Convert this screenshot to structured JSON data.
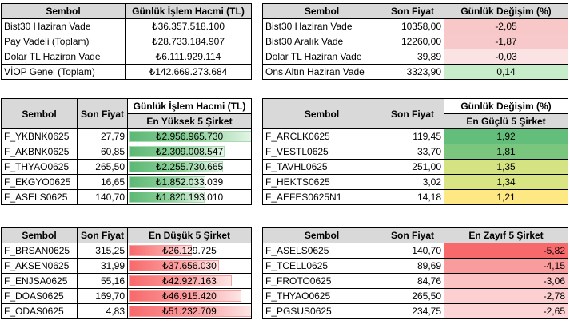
{
  "t1": {
    "headers": [
      "Sembol",
      "Günlük İşlem Hacmi (TL)"
    ],
    "rows": [
      {
        "sym": "Bist30 Haziran Vade",
        "val": "₺36.357.518.100"
      },
      {
        "sym": "Pay Vadeli (Toplam)",
        "val": "₺28.733.184.907"
      },
      {
        "sym": "Dolar TL Haziran Vade",
        "val": "₺6.111.929.114"
      },
      {
        "sym": "VİOP Genel (Toplam)",
        "val": "₺142.669.273.684"
      }
    ]
  },
  "t2": {
    "headers": [
      "Sembol",
      "Son Fiyat",
      "Günlük Değişim (%)"
    ],
    "rows": [
      {
        "sym": "Bist30 Haziran Vade",
        "price": "10358,00",
        "chg": "-2,05",
        "bg": "#f8c7c8"
      },
      {
        "sym": "Bist30 Aralık Vade",
        "price": "12260,00",
        "chg": "-1,87",
        "bg": "#f8c9ca"
      },
      {
        "sym": "Dolar TL Haziran Vade",
        "price": "39,89",
        "chg": "-0,03",
        "bg": "#fbe3e4"
      },
      {
        "sym": "Ons Altın Haziran Vade",
        "price": "3323,90",
        "chg": "0,14",
        "bg": "#c6ecc9"
      }
    ]
  },
  "t3": {
    "headers": [
      "Sembol",
      "Son Fiyat",
      "Günlük İşlem Hacmi (TL)"
    ],
    "sub": "En Yüksek 5 Şirket",
    "rows": [
      {
        "sym": "F_YKBNK0625",
        "price": "27,79",
        "vol": "₺2.956.965.730",
        "frac": 1.0
      },
      {
        "sym": "F_AKBNK0625",
        "price": "60,85",
        "vol": "₺2.309.008.547",
        "frac": 0.78
      },
      {
        "sym": "F_THYAO0625",
        "price": "265,50",
        "vol": "₺2.255.730.665",
        "frac": 0.763
      },
      {
        "sym": "F_EKGYO0625",
        "price": "16,65",
        "vol": "₺1.852.033.039",
        "frac": 0.626
      },
      {
        "sym": "F_ASELS0625",
        "price": "140,70",
        "vol": "₺1.820.193.010",
        "frac": 0.616
      }
    ]
  },
  "t4": {
    "headers": [
      "Sembol",
      "Son Fiyat",
      "Günlük Değişim (%)"
    ],
    "sub": "En Güçlü 5 Şirket",
    "rows": [
      {
        "sym": "F_ARCLK0625",
        "price": "119,45",
        "chg": "1,92",
        "bg": "#63be7b"
      },
      {
        "sym": "F_VESTL0625",
        "price": "33,70",
        "chg": "1,81",
        "bg": "#7ac67e"
      },
      {
        "sym": "F_TAVHL0625",
        "price": "251,00",
        "chg": "1,35",
        "bg": "#d6e382"
      },
      {
        "sym": "F_HEKTS0625",
        "price": "3,02",
        "chg": "1,34",
        "bg": "#d9e483"
      },
      {
        "sym": "F_AEFES0625N1",
        "price": "14,18",
        "chg": "1,21",
        "bg": "#fde883"
      }
    ]
  },
  "t5": {
    "headers": [
      "Sembol",
      "Son Fiyat",
      "En Düşük 5 Şirket"
    ],
    "rows": [
      {
        "sym": "F_BRSAN0625",
        "price": "315,25",
        "vol": "₺26.129.725",
        "frac": 0.51
      },
      {
        "sym": "F_AKSEN0625",
        "price": "31,99",
        "vol": "₺37.656.030",
        "frac": 0.735
      },
      {
        "sym": "F_ENJSA0625",
        "price": "55,16",
        "vol": "₺42.927.163",
        "frac": 0.838
      },
      {
        "sym": "F_DOAS0625",
        "price": "169,70",
        "vol": "₺46.915.420",
        "frac": 0.916
      },
      {
        "sym": "F_ODAS0625",
        "price": "4,83",
        "vol": "₺51.232.709",
        "frac": 1.0
      }
    ]
  },
  "t6": {
    "headers": [
      "Sembol",
      "Son Fiyat",
      "En Zayıf 5 Şirket"
    ],
    "rows": [
      {
        "sym": "F_ASELS0625",
        "price": "140,70",
        "chg": "-5,82",
        "bg": "#f8696b"
      },
      {
        "sym": "F_TCELL0625",
        "price": "89,69",
        "chg": "-4,15",
        "bg": "#fa9c9e"
      },
      {
        "sym": "F_FROTO0625",
        "price": "84,76",
        "chg": "-3,06",
        "bg": "#fcc3c4"
      },
      {
        "sym": "F_THYAO0625",
        "price": "265,50",
        "chg": "-2,78",
        "bg": "#fcd0d1"
      },
      {
        "sym": "F_PGSUS0625",
        "price": "234,75",
        "chg": "-2,65",
        "bg": "#fdd5d6"
      }
    ]
  }
}
